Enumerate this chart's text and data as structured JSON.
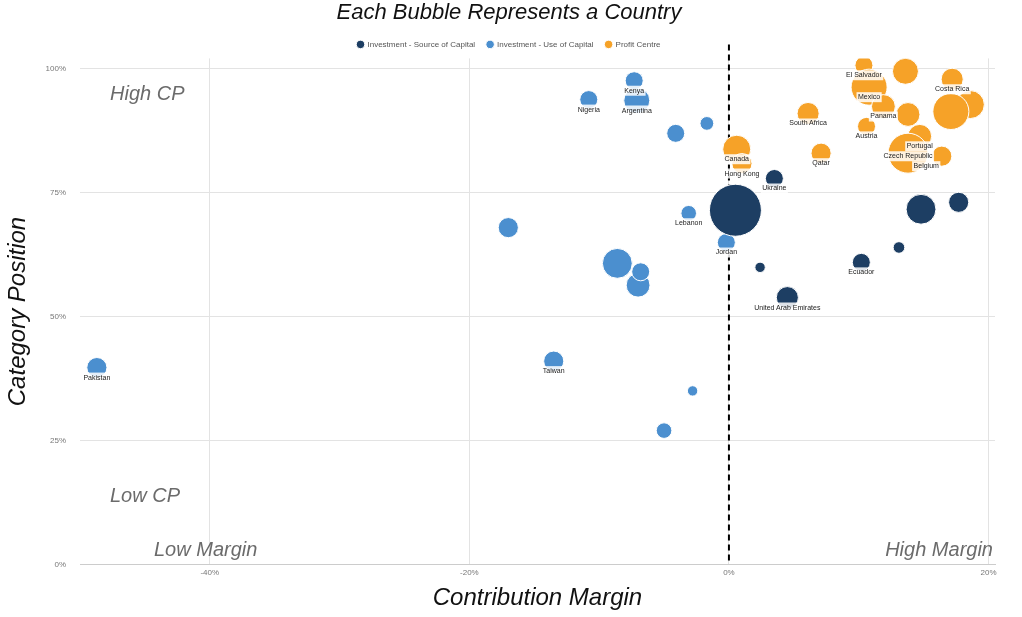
{
  "chart_data": {
    "type": "bubble",
    "title": "Each Bubble Represents a Country",
    "xlabel": "Contribution Margin",
    "ylabel": "Category Position",
    "xlim": [
      -50,
      20.5
    ],
    "ylim": [
      0,
      102
    ],
    "xticks": [
      {
        "value": -40,
        "label": "-40%"
      },
      {
        "value": -20,
        "label": "-20%"
      },
      {
        "value": 0,
        "label": "0%"
      },
      {
        "value": 20,
        "label": "20%"
      }
    ],
    "yticks": [
      {
        "value": 0,
        "label": "0%"
      },
      {
        "value": 25,
        "label": "25%"
      },
      {
        "value": 50,
        "label": "50%"
      },
      {
        "value": 75,
        "label": "75%"
      },
      {
        "value": 100,
        "label": "100%"
      }
    ],
    "grid": true,
    "legend": "top",
    "ref_lines": [
      {
        "axis": "x",
        "value": 0,
        "color": "#000000",
        "line_style": "dashed"
      }
    ],
    "series": [
      {
        "name": "Investment - Source of Capital",
        "color": "#1d3e63",
        "x": [
          0.5,
          3.5,
          14.8,
          17.7,
          13.1,
          10.2,
          2.4,
          4.5
        ],
        "values": [
          71.4,
          77.8,
          71.6,
          73,
          63.9,
          60.9,
          59.9,
          53.8
        ],
        "sizes": [
          1,
          0.12,
          0.33,
          0.15,
          0.05,
          0.12,
          0.04,
          0.18
        ]
      },
      {
        "name": "Investment - Use of Capital",
        "color": "#4b8fcf",
        "x": [
          -48.7,
          -13.5,
          -2.8,
          -5.0,
          -17.0,
          -8.6,
          -7.0,
          -6.8,
          -3.1,
          -0.2,
          -10.8,
          -7.1,
          -7.3,
          -4.1,
          -1.7
        ],
        "values": [
          39.7,
          41,
          35,
          27,
          67.9,
          60.7,
          56.3,
          59,
          70.8,
          64.9,
          93.7,
          93.5,
          97.5,
          86.9,
          88.9
        ],
        "sizes": [
          0.15,
          0.15,
          0.04,
          0.09,
          0.15,
          0.33,
          0.21,
          0.12,
          0.09,
          0.12,
          0.12,
          0.25,
          0.12,
          0.12,
          0.07
        ]
      },
      {
        "name": "Profit Centre",
        "color": "#f6a228",
        "x": [
          0.6,
          1.0,
          6.1,
          7.1,
          10.4,
          13.6,
          17.2,
          10.8,
          11.9,
          18.6,
          17.1,
          13.8,
          10.6,
          14.7,
          13.8,
          16.4
        ],
        "values": [
          83.7,
          80.8,
          90.9,
          82.9,
          100.6,
          99.4,
          97.8,
          96.2,
          92.3,
          92.7,
          91.3,
          90.7,
          88.3,
          86.3,
          82.9,
          82.3
        ],
        "sizes": [
          0.29,
          0.15,
          0.18,
          0.15,
          0.12,
          0.25,
          0.18,
          0.48,
          0.21,
          0.29,
          0.48,
          0.21,
          0.12,
          0.21,
          0.59,
          0.15
        ]
      }
    ],
    "annotations": [
      "High CP",
      "Low CP",
      "Low Margin",
      "High Margin",
      {
        "text": "Pakistan",
        "x": -48.7,
        "y": 39.7
      },
      {
        "text": "Taiwan",
        "x": -13.5,
        "y": 41
      },
      {
        "text": "Lebanon",
        "x": -3.1,
        "y": 70.8
      },
      {
        "text": "Jordan",
        "x": -0.2,
        "y": 64.9
      },
      {
        "text": "Nigeria",
        "x": -10.8,
        "y": 93.7
      },
      {
        "text": "Argentina",
        "x": -7.1,
        "y": 93.5
      },
      {
        "text": "Kenya",
        "x": -7.3,
        "y": 97.5
      },
      {
        "text": "Canada",
        "x": 0.6,
        "y": 83.7
      },
      {
        "text": "Hong Kong",
        "x": 1.0,
        "y": 80.8
      },
      {
        "text": "Ukraine",
        "x": 3.5,
        "y": 77.8
      },
      {
        "text": "Ecuador",
        "x": 10.2,
        "y": 60.9
      },
      {
        "text": "United Arab Emirates",
        "x": 4.5,
        "y": 53.8
      },
      {
        "text": "South Africa",
        "x": 6.1,
        "y": 90.9
      },
      {
        "text": "Qatar",
        "x": 7.1,
        "y": 82.9
      },
      {
        "text": "El Salvador",
        "x": 10.4,
        "y": 100.6
      },
      {
        "text": "Costa Rica",
        "x": 17.2,
        "y": 97.8
      },
      {
        "text": "Mexico",
        "x": 10.8,
        "y": 96.2
      },
      {
        "text": "Panama",
        "x": 11.9,
        "y": 92.3
      },
      {
        "text": "Austria",
        "x": 10.6,
        "y": 88.3
      },
      {
        "text": "Portugal",
        "x": 14.7,
        "y": 86.3
      },
      {
        "text": "Czech Republic",
        "x": 13.8,
        "y": 84.3
      },
      {
        "text": "Belgium",
        "x": 15.2,
        "y": 82.3
      }
    ]
  }
}
